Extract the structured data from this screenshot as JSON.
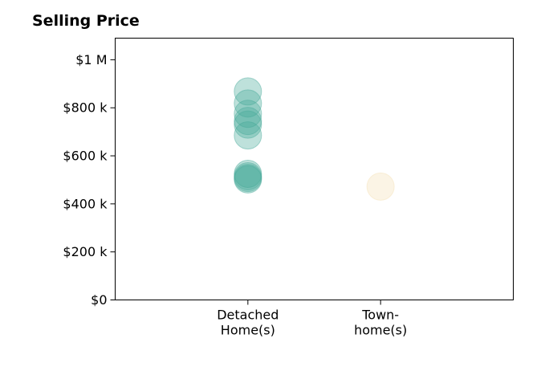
{
  "chart_data": {
    "type": "scatter",
    "title": "Selling Price",
    "categories": [
      {
        "lines": [
          "Detached",
          "Home(s)"
        ]
      },
      {
        "lines": [
          "Town-",
          "home(s)"
        ]
      }
    ],
    "yticks": [
      {
        "value": 0,
        "label": "$0"
      },
      {
        "value": 200000,
        "label": "$200 k"
      },
      {
        "value": 400000,
        "label": "$400 k"
      },
      {
        "value": 600000,
        "label": "$600 k"
      },
      {
        "value": 800000,
        "label": "$800 k"
      },
      {
        "value": 1000000,
        "label": "$1 M"
      }
    ],
    "ylim": [
      0,
      1090000
    ],
    "xlim": [
      0,
      3
    ],
    "grid": false,
    "series": [
      {
        "category_index": 0,
        "color": "#46a898",
        "values": [
          868000,
          818000,
          775000,
          745000,
          730000,
          685000,
          525000,
          515000,
          508000,
          502000
        ]
      },
      {
        "category_index": 1,
        "color": "#f3dfb4",
        "values": [
          472000
        ]
      }
    ]
  }
}
